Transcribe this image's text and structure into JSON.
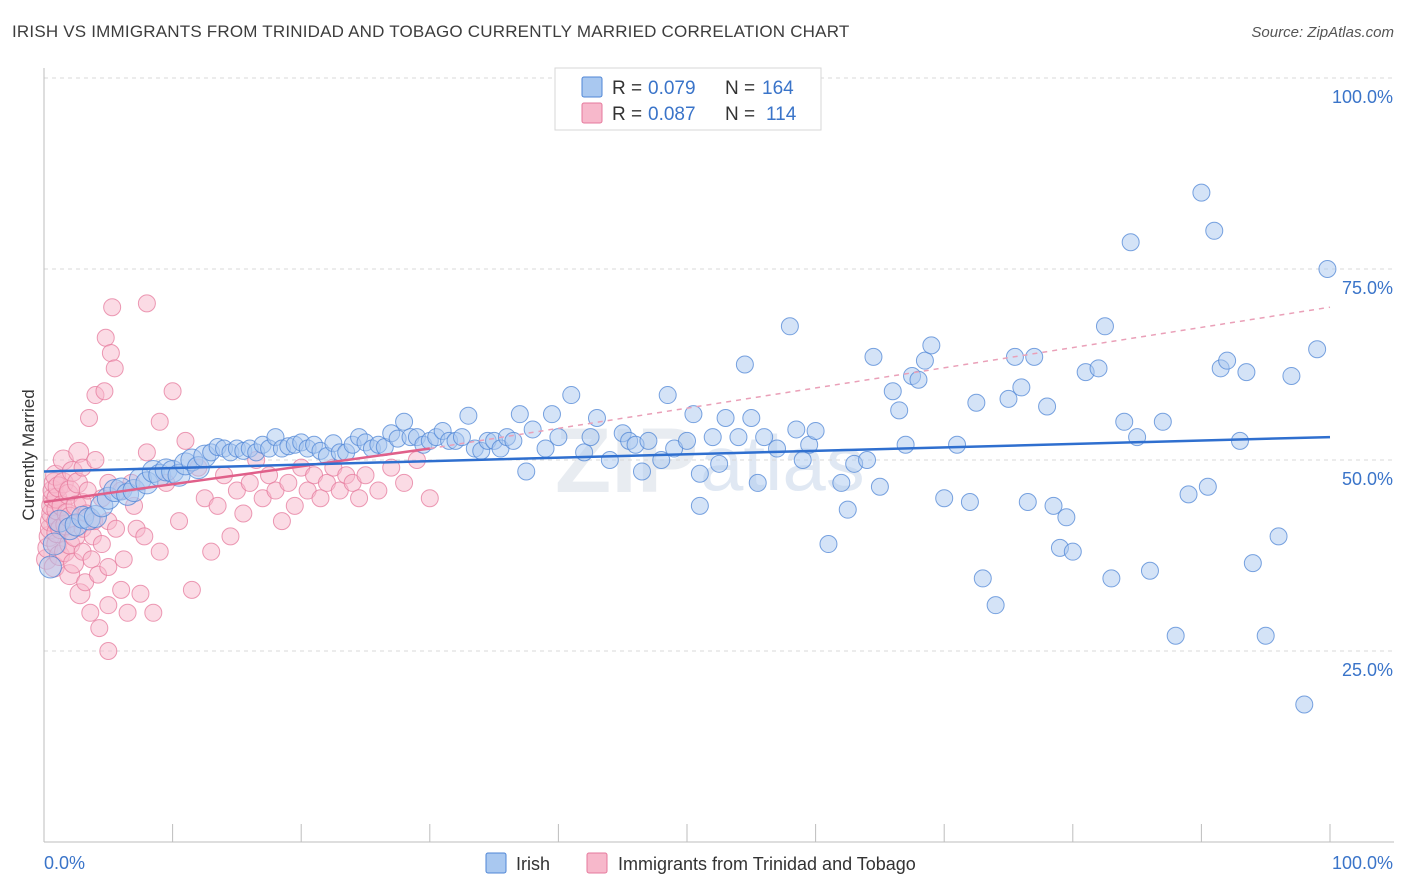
{
  "header": {
    "title": "IRISH VS IMMIGRANTS FROM TRINIDAD AND TOBAGO CURRENTLY MARRIED CORRELATION CHART",
    "source_label": "Source:",
    "source_value": "ZipAtlas.com"
  },
  "watermark": {
    "zip": "ZIP",
    "atlas": "atlas"
  },
  "stats": {
    "rows": [
      {
        "r_label": "R =",
        "r_value": "0.079",
        "n_label": "N =",
        "n_value": "164",
        "color": "#a9c8f0",
        "stroke": "#4f86d6"
      },
      {
        "r_label": "R =",
        "r_value": "0.087",
        "n_label": "N =",
        "n_value": "114",
        "color": "#f7b8cb",
        "stroke": "#e6799c"
      }
    ]
  },
  "chart_data": {
    "type": "scatter",
    "xlabel": "",
    "ylabel": "Currently Married",
    "xlim": [
      0,
      100
    ],
    "ylim": [
      0,
      100
    ],
    "y_ticks": [
      25,
      50,
      75,
      100
    ],
    "y_tick_labels": [
      "25.0%",
      "50.0%",
      "75.0%",
      "100.0%"
    ],
    "x_tick_labels": {
      "min": "0.0%",
      "max": "100.0%"
    },
    "grid": true,
    "legend_position": "bottom-center",
    "series": [
      {
        "name": "Irish",
        "color": "#a9c8f0",
        "stroke": "#4f86d6",
        "trend": {
          "x": [
            0,
            100
          ],
          "y": [
            48.5,
            53.0
          ],
          "color": "#2f6fcf",
          "style": "solid"
        },
        "points": [
          [
            0.5,
            36
          ],
          [
            0.8,
            39
          ],
          [
            1.2,
            42
          ],
          [
            2,
            41
          ],
          [
            2.5,
            41.5
          ],
          [
            3,
            42.5
          ],
          [
            3.5,
            42.3
          ],
          [
            4,
            42.6
          ],
          [
            4.5,
            44
          ],
          [
            5,
            45
          ],
          [
            5.5,
            46
          ],
          [
            6,
            46.2
          ],
          [
            6.5,
            45.5
          ],
          [
            7,
            46
          ],
          [
            7.5,
            47.5
          ],
          [
            8,
            47
          ],
          [
            8.5,
            48.5
          ],
          [
            9,
            48
          ],
          [
            9.5,
            48.7
          ],
          [
            10,
            48.5
          ],
          [
            10.5,
            48
          ],
          [
            11,
            49.5
          ],
          [
            11.5,
            50
          ],
          [
            12,
            49
          ],
          [
            12.5,
            50.5
          ],
          [
            13,
            51
          ],
          [
            13.5,
            51.7
          ],
          [
            14,
            51.5
          ],
          [
            14.5,
            51
          ],
          [
            15,
            51.5
          ],
          [
            15.5,
            51.2
          ],
          [
            16,
            51.5
          ],
          [
            16.5,
            51
          ],
          [
            17,
            52
          ],
          [
            17.5,
            51.5
          ],
          [
            18,
            53
          ],
          [
            18.5,
            51.5
          ],
          [
            19,
            51.8
          ],
          [
            19.5,
            52
          ],
          [
            20,
            52.3
          ],
          [
            20.5,
            51.5
          ],
          [
            21,
            52
          ],
          [
            21.5,
            51.2
          ],
          [
            22,
            50.5
          ],
          [
            22.5,
            52.2
          ],
          [
            23,
            51
          ],
          [
            23.5,
            51
          ],
          [
            24,
            52
          ],
          [
            24.5,
            53
          ],
          [
            25,
            52.3
          ],
          [
            25.5,
            51.5
          ],
          [
            26,
            52
          ],
          [
            26.5,
            51.7
          ],
          [
            27,
            53.5
          ],
          [
            27.5,
            52.8
          ],
          [
            28,
            55
          ],
          [
            28.5,
            53
          ],
          [
            29,
            53
          ],
          [
            29.5,
            52
          ],
          [
            30,
            52.5
          ],
          [
            30.5,
            53
          ],
          [
            31,
            53.8
          ],
          [
            31.5,
            52.5
          ],
          [
            32,
            52.5
          ],
          [
            32.5,
            53
          ],
          [
            33,
            55.8
          ],
          [
            33.5,
            51.5
          ],
          [
            34,
            51.2
          ],
          [
            34.5,
            52.5
          ],
          [
            35,
            52.5
          ],
          [
            35.5,
            51.5
          ],
          [
            36,
            53
          ],
          [
            36.5,
            52.5
          ],
          [
            37,
            56
          ],
          [
            37.5,
            48.5
          ],
          [
            38,
            54
          ],
          [
            39,
            51.5
          ],
          [
            39.5,
            56
          ],
          [
            40,
            53
          ],
          [
            41,
            58.5
          ],
          [
            42,
            51
          ],
          [
            42.5,
            53
          ],
          [
            43,
            55.5
          ],
          [
            44,
            50
          ],
          [
            45,
            53.5
          ],
          [
            45.5,
            52.5
          ],
          [
            46,
            52
          ],
          [
            46.5,
            48.5
          ],
          [
            47,
            52.5
          ],
          [
            48,
            50
          ],
          [
            48.5,
            58.5
          ],
          [
            49,
            51.5
          ],
          [
            50,
            52.5
          ],
          [
            50.5,
            56
          ],
          [
            51,
            44
          ],
          [
            51,
            48.2
          ],
          [
            52,
            53
          ],
          [
            52.5,
            49.5
          ],
          [
            53,
            55.5
          ],
          [
            54,
            53
          ],
          [
            54.5,
            62.5
          ],
          [
            55,
            55.5
          ],
          [
            55.5,
            47
          ],
          [
            56,
            53
          ],
          [
            57,
            51.5
          ],
          [
            58,
            67.5
          ],
          [
            58.5,
            54
          ],
          [
            59,
            50
          ],
          [
            59.5,
            52
          ],
          [
            60,
            53.8
          ],
          [
            61,
            39
          ],
          [
            62,
            47
          ],
          [
            62.5,
            43.5
          ],
          [
            63,
            49.5
          ],
          [
            64,
            50
          ],
          [
            64.5,
            63.5
          ],
          [
            65,
            46.5
          ],
          [
            66,
            59
          ],
          [
            66.5,
            56.5
          ],
          [
            67,
            52
          ],
          [
            67.5,
            61
          ],
          [
            68,
            60.5
          ],
          [
            68.5,
            63
          ],
          [
            69,
            65
          ],
          [
            70,
            45
          ],
          [
            71,
            52
          ],
          [
            72,
            44.5
          ],
          [
            72.5,
            57.5
          ],
          [
            73,
            34.5
          ],
          [
            74,
            31
          ],
          [
            75,
            58
          ],
          [
            75.5,
            63.5
          ],
          [
            76,
            59.5
          ],
          [
            76.5,
            44.5
          ],
          [
            77,
            63.5
          ],
          [
            78,
            57
          ],
          [
            78.5,
            44
          ],
          [
            79,
            38.5
          ],
          [
            79.5,
            42.5
          ],
          [
            80,
            38
          ],
          [
            81,
            61.5
          ],
          [
            82,
            62
          ],
          [
            82.5,
            67.5
          ],
          [
            83,
            34.5
          ],
          [
            84,
            55
          ],
          [
            84.5,
            78.5
          ],
          [
            85,
            53
          ],
          [
            86,
            35.5
          ],
          [
            87,
            55
          ],
          [
            88,
            27
          ],
          [
            89,
            45.5
          ],
          [
            90,
            85
          ],
          [
            90.5,
            46.5
          ],
          [
            91,
            80
          ],
          [
            91.5,
            62
          ],
          [
            92,
            63
          ],
          [
            93,
            52.5
          ],
          [
            93.5,
            61.5
          ],
          [
            94,
            36.5
          ],
          [
            95,
            27
          ],
          [
            96,
            40
          ],
          [
            97,
            61
          ],
          [
            98,
            18
          ],
          [
            99,
            64.5
          ],
          [
            99.8,
            75
          ]
        ]
      },
      {
        "name": "Immigrants from Trinidad and Tobago",
        "color": "#f7b8cb",
        "stroke": "#e6799c",
        "trend": {
          "x": [
            0,
            30
          ],
          "y": [
            44.5,
            51.5
          ],
          "color": "#e0608a",
          "style": "solid",
          "extension": {
            "x": [
              30,
              100
            ],
            "y": [
              51.5,
              70
            ],
            "style": "dashed"
          }
        },
        "points": [
          [
            0.2,
            37
          ],
          [
            0.3,
            38.5
          ],
          [
            0.4,
            40
          ],
          [
            0.5,
            41
          ],
          [
            0.5,
            42
          ],
          [
            0.6,
            43
          ],
          [
            0.6,
            44
          ],
          [
            0.7,
            45
          ],
          [
            0.7,
            46
          ],
          [
            0.8,
            47
          ],
          [
            0.8,
            36
          ],
          [
            0.9,
            48
          ],
          [
            1,
            39
          ],
          [
            1,
            40.5
          ],
          [
            1,
            42
          ],
          [
            1,
            43.5
          ],
          [
            1,
            45
          ],
          [
            1.1,
            46.5
          ],
          [
            1.2,
            37.5
          ],
          [
            1.3,
            41
          ],
          [
            1.4,
            44
          ],
          [
            1.5,
            47
          ],
          [
            1.5,
            50
          ],
          [
            1.6,
            38
          ],
          [
            1.7,
            41.5
          ],
          [
            1.8,
            43
          ],
          [
            1.9,
            45.5
          ],
          [
            2,
            35
          ],
          [
            2,
            39
          ],
          [
            2,
            42.5
          ],
          [
            2,
            46
          ],
          [
            2.2,
            48.5
          ],
          [
            2.3,
            36.5
          ],
          [
            2.4,
            40
          ],
          [
            2.5,
            44
          ],
          [
            2.6,
            47
          ],
          [
            2.7,
            51
          ],
          [
            2.8,
            32.5
          ],
          [
            3,
            38
          ],
          [
            3,
            41
          ],
          [
            3,
            44.5
          ],
          [
            3,
            49
          ],
          [
            3.2,
            34
          ],
          [
            3.3,
            43
          ],
          [
            3.4,
            46
          ],
          [
            3.5,
            55.5
          ],
          [
            3.6,
            30
          ],
          [
            3.7,
            37
          ],
          [
            3.8,
            40
          ],
          [
            3.9,
            42
          ],
          [
            4,
            50
          ],
          [
            4,
            58.5
          ],
          [
            4.2,
            35
          ],
          [
            4.3,
            28
          ],
          [
            4.5,
            39
          ],
          [
            4.5,
            45
          ],
          [
            4.7,
            59
          ],
          [
            4.8,
            66
          ],
          [
            5,
            25
          ],
          [
            5,
            31
          ],
          [
            5,
            36
          ],
          [
            5,
            42
          ],
          [
            5,
            47
          ],
          [
            5.2,
            64
          ],
          [
            5.3,
            70
          ],
          [
            5.5,
            62
          ],
          [
            5.6,
            41
          ],
          [
            6,
            33
          ],
          [
            6,
            46
          ],
          [
            6.2,
            37
          ],
          [
            6.5,
            30
          ],
          [
            6.8,
            47
          ],
          [
            7,
            44
          ],
          [
            7.2,
            41
          ],
          [
            7.5,
            32.5
          ],
          [
            7.8,
            40
          ],
          [
            8,
            51
          ],
          [
            8,
            70.5
          ],
          [
            8.5,
            30
          ],
          [
            9,
            55
          ],
          [
            9,
            38
          ],
          [
            9.5,
            47
          ],
          [
            10,
            59
          ],
          [
            10.5,
            42
          ],
          [
            11,
            52.5
          ],
          [
            11.5,
            33
          ],
          [
            12,
            49
          ],
          [
            12.5,
            45
          ],
          [
            13,
            38
          ],
          [
            13.5,
            44
          ],
          [
            14,
            48
          ],
          [
            14.5,
            40
          ],
          [
            15,
            46
          ],
          [
            15.5,
            43
          ],
          [
            16,
            47
          ],
          [
            16.5,
            50
          ],
          [
            17,
            45
          ],
          [
            17.5,
            48
          ],
          [
            18,
            46
          ],
          [
            18.5,
            42
          ],
          [
            19,
            47
          ],
          [
            19.5,
            44
          ],
          [
            20,
            49
          ],
          [
            20.5,
            46
          ],
          [
            21,
            48
          ],
          [
            21.5,
            45
          ],
          [
            22,
            47
          ],
          [
            22.5,
            49
          ],
          [
            23,
            46
          ],
          [
            23.5,
            48
          ],
          [
            24,
            47
          ],
          [
            24.5,
            45
          ],
          [
            25,
            48
          ],
          [
            26,
            46
          ],
          [
            27,
            49
          ],
          [
            28,
            47
          ],
          [
            29,
            50
          ],
          [
            30,
            45
          ]
        ]
      }
    ]
  }
}
